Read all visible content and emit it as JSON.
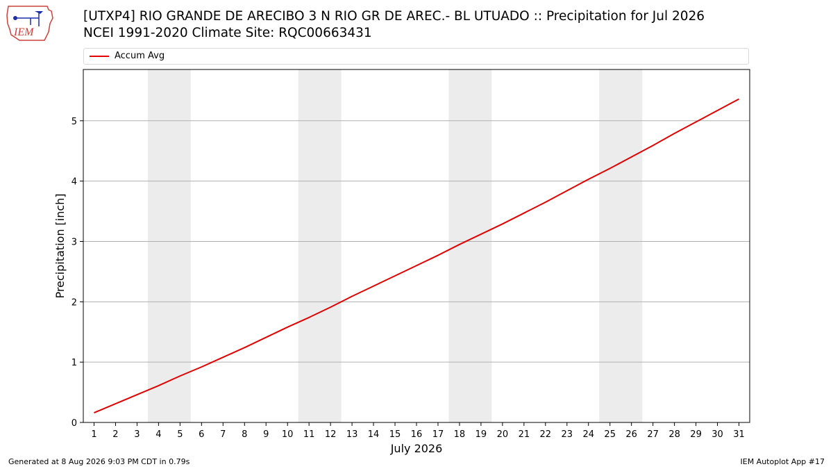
{
  "logo": {
    "text": "IEM"
  },
  "header": {
    "title_line1": "[UTXP4] RIO GRANDE DE ARECIBO 3 N RIO GR DE AREC.- BL UTUADO :: Precipitation for Jul 2026",
    "title_line2": "NCEI 1991-2020 Climate Site: RQC00663431"
  },
  "legend": {
    "label": "Accum Avg",
    "color": "#e00000"
  },
  "footer": {
    "generated": "Generated at 8 Aug 2026 9:03 PM CDT in 0.79s",
    "app": "IEM Autoplot App #17"
  },
  "colors": {
    "line": "#e00000",
    "weekend_shade": "#ececec",
    "grid": "#b0b0b0"
  },
  "chart_data": {
    "type": "line",
    "xlabel": "July 2026",
    "ylabel": "Precipitation [inch]",
    "ylim": [
      0,
      5.85
    ],
    "yticks": [
      0,
      1,
      2,
      3,
      4,
      5
    ],
    "x": [
      1,
      2,
      3,
      4,
      5,
      6,
      7,
      8,
      9,
      10,
      11,
      12,
      13,
      14,
      15,
      16,
      17,
      18,
      19,
      20,
      21,
      22,
      23,
      24,
      25,
      26,
      27,
      28,
      29,
      30,
      31
    ],
    "grid": "horizontal",
    "shaded_day_spans": [
      [
        3.5,
        5.5
      ],
      [
        10.5,
        12.5
      ],
      [
        17.5,
        19.5
      ],
      [
        24.5,
        26.5
      ]
    ],
    "series": [
      {
        "name": "Accum Avg",
        "color": "#e00000",
        "values": [
          0.16,
          0.31,
          0.46,
          0.61,
          0.77,
          0.92,
          1.08,
          1.24,
          1.41,
          1.58,
          1.74,
          1.91,
          2.09,
          2.26,
          2.43,
          2.6,
          2.77,
          2.95,
          3.12,
          3.29,
          3.47,
          3.65,
          3.84,
          4.03,
          4.21,
          4.4,
          4.59,
          4.79,
          4.98,
          5.17,
          5.36
        ]
      }
    ]
  }
}
